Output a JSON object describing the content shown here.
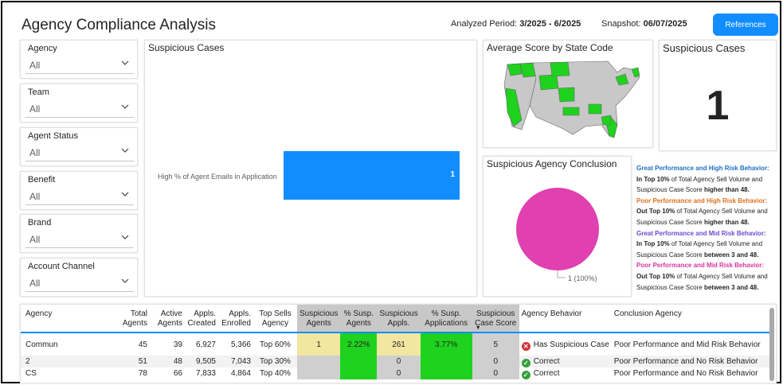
{
  "header": {
    "title": "Agency Compliance Analysis",
    "period_label": "Analyzed Period:",
    "period_value": "3/2025 - 6/2025",
    "snapshot_label": "Snapshot:",
    "snapshot_value": "06/07/2025",
    "references_button": "References"
  },
  "slicers": [
    {
      "label": "Agency",
      "value": "All"
    },
    {
      "label": "Team",
      "value": "All"
    },
    {
      "label": "Agent Status",
      "value": "All"
    },
    {
      "label": "Benefit",
      "value": "All"
    },
    {
      "label": "Brand",
      "value": "All"
    },
    {
      "label": "Account Channel",
      "value": "All"
    }
  ],
  "suspicious_chart": {
    "title": "Suspicious Cases",
    "chart_data": {
      "type": "bar",
      "categories": [
        "High % of Agent Emails in Application"
      ],
      "values": [
        1
      ],
      "color": "#118DFF"
    }
  },
  "map_card": {
    "title": "Average Score by State Code",
    "colors": {
      "highlight": "#1ed21e",
      "base": "#c8c8c8"
    }
  },
  "kpi_card": {
    "title": "Suspicious Cases",
    "value": "1"
  },
  "conclusion_card": {
    "title": "Suspicious Agency Conclusion",
    "chart_data": {
      "type": "pie",
      "slices": [
        {
          "value": 1,
          "percent": 100
        }
      ],
      "data_label": "1 (100%)",
      "color": "#e040b0"
    }
  },
  "legend": {
    "great_high": "Great Performance and High Risk Behavior:",
    "great_high_p1": "In Top 10%",
    "great_high_p2": " of Total Agency Sell Volume and Suspicious Case Score ",
    "great_high_p3": "higher than 48",
    "poor_high": "Poor Performance and High Risk Behavior:",
    "poor_high_p1": "Out Top 10%",
    "poor_high_p2": " of Total Agency Sell Volume and Suspicious Case Score  ",
    "poor_high_p3": "higher than 48",
    "great_mid": "Great Performance and Mid Risk Behavior:",
    "great_mid_p1": "In Top 10%",
    "great_mid_p2": " of Total Agency Sell Volume and Suspicious Case Score ",
    "great_mid_p3": "between 3 and 48",
    "poor_mid": "Poor Performance and Mid Risk Behavior:",
    "poor_mid_p1": "Out Top 10%",
    "poor_mid_p2": " of Total Agency Sell Volume and Suspicious Case Score ",
    "poor_mid_p3": "between 3 and 48",
    "period": "."
  },
  "table": {
    "columns": [
      "Agency",
      "Total Agents",
      "Active Agents",
      "Appls. Created",
      "Appls. Enrolled",
      "Top Sells Agency",
      "Suspicious Agents",
      "% Susp. Agents",
      "Suspicious Appls.",
      "% Susp. Applications",
      "Suspicious Case Score",
      "Agency Behavior",
      "Conclusion Agency"
    ],
    "rows": [
      {
        "agency": "Commun",
        "total": "45",
        "active": "39",
        "created": "6,927",
        "enrolled": "5,366",
        "top": "Top 60%",
        "susp_agents": "1",
        "pct_agents": "2.22%",
        "susp_appls": "261",
        "pct_appls": "3.77%",
        "score": "5",
        "behavior": "Has Suspicious Case",
        "conclusion": "Poor Performance and Mid Risk Behavior"
      },
      {
        "agency": "2",
        "total": "51",
        "active": "48",
        "created": "9,505",
        "enrolled": "7,043",
        "top": "Top 30%",
        "susp_agents": "",
        "pct_agents": "",
        "susp_appls": "0",
        "pct_appls": "",
        "score": "0",
        "behavior": "Correct",
        "conclusion": "Poor Performance and No Risk Behavior"
      },
      {
        "agency": "CS",
        "total": "78",
        "active": "66",
        "created": "7,833",
        "enrolled": "4,864",
        "top": "Top 40%",
        "susp_agents": "",
        "pct_agents": "",
        "susp_appls": "0",
        "pct_appls": "",
        "score": "0",
        "behavior": "Correct",
        "conclusion": "Poor Performance and No Risk Behavior"
      }
    ]
  }
}
